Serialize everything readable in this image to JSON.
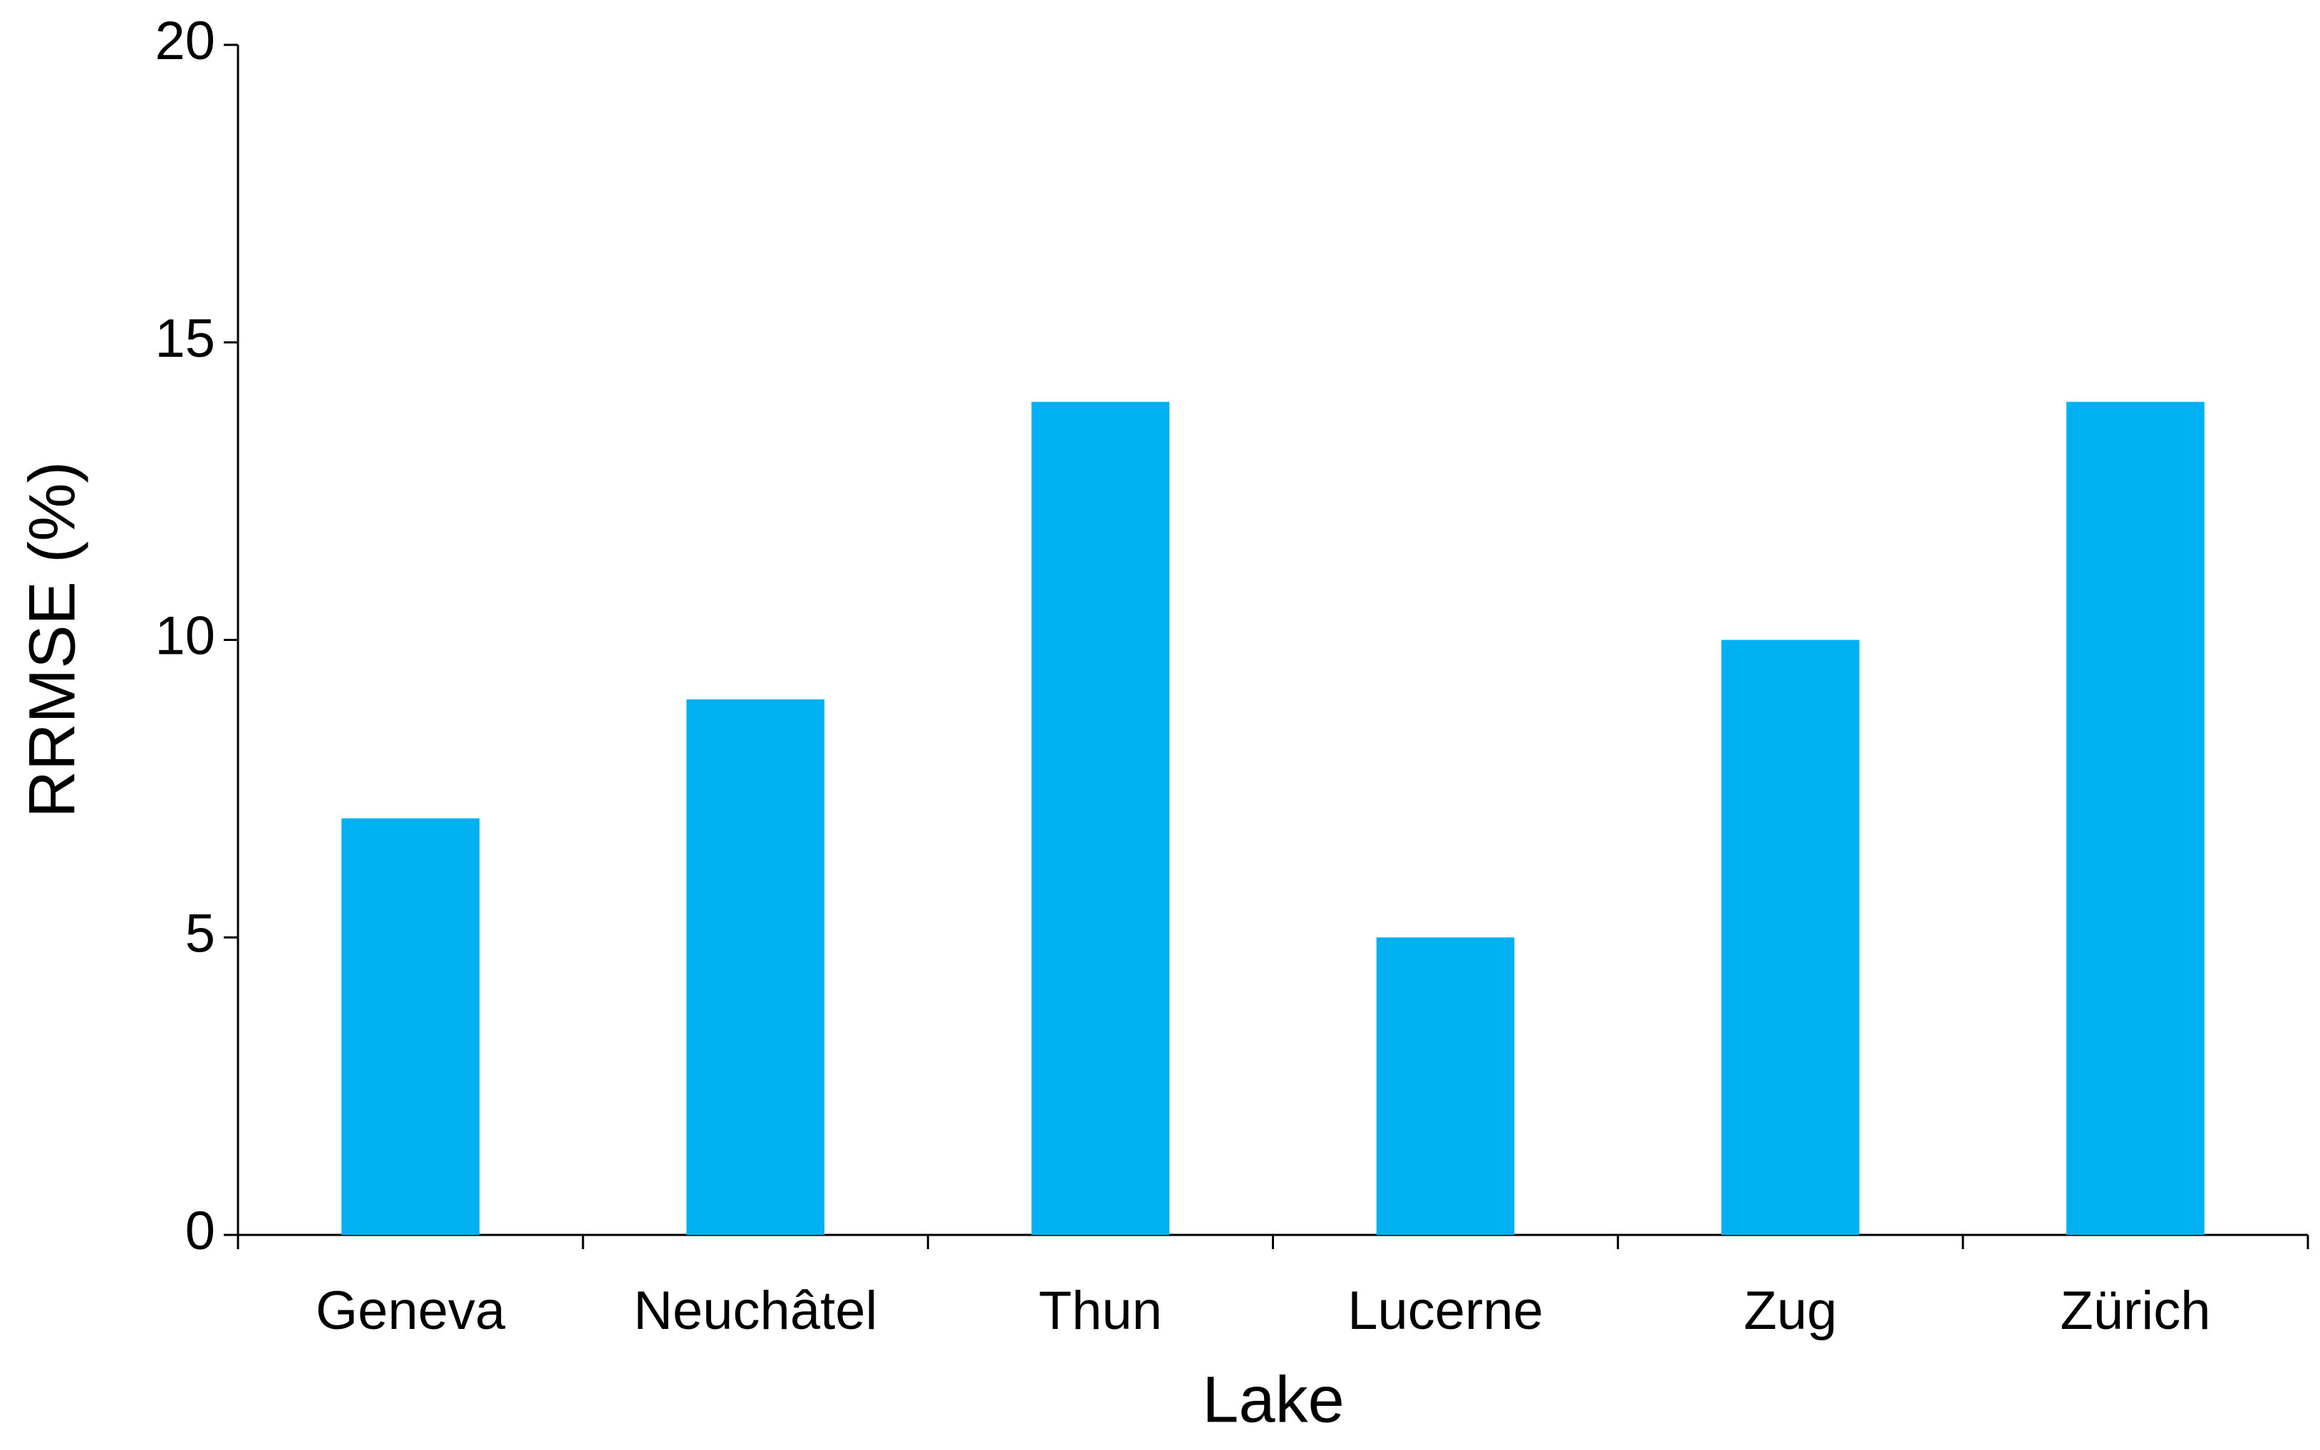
{
  "chart_data": {
    "type": "bar",
    "x_label": "Lake",
    "y_label": "RRMSE (%)",
    "categories": [
      "Geneva",
      "Neuchâtel",
      "Thun",
      "Lucerne",
      "Zug",
      "Zürich"
    ],
    "values": [
      7,
      9,
      14,
      5,
      10,
      14
    ],
    "color": "#00b0f0",
    "ylim": [
      0,
      20
    ],
    "yticks": [
      0,
      5,
      10,
      15,
      20
    ],
    "grid": false
  }
}
